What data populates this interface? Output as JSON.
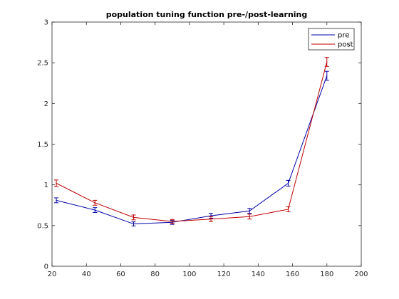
{
  "chart_data": {
    "type": "line",
    "title": "population tuning function pre-/post-learning",
    "xlabel": "",
    "ylabel": "",
    "xlim": [
      20,
      200
    ],
    "ylim": [
      0,
      3
    ],
    "xticks": [
      20,
      40,
      60,
      80,
      100,
      120,
      140,
      160,
      180,
      200
    ],
    "yticks": [
      0,
      0.5,
      1,
      1.5,
      2,
      2.5,
      3
    ],
    "grid": false,
    "legend_position": "top-right",
    "x": [
      22.5,
      45,
      67.5,
      90,
      112.5,
      135,
      157.5,
      180
    ],
    "series": [
      {
        "name": "pre",
        "color": "#0000a8",
        "values": [
          0.81,
          0.69,
          0.52,
          0.54,
          0.62,
          0.68,
          1.02,
          2.34
        ],
        "errors": [
          0.03,
          0.03,
          0.025,
          0.025,
          0.03,
          0.03,
          0.035,
          0.055
        ]
      },
      {
        "name": "post",
        "color": "#c00000",
        "values": [
          1.02,
          0.78,
          0.6,
          0.55,
          0.58,
          0.61,
          0.7,
          2.51
        ],
        "errors": [
          0.04,
          0.03,
          0.03,
          0.025,
          0.03,
          0.03,
          0.03,
          0.055
        ]
      }
    ]
  }
}
